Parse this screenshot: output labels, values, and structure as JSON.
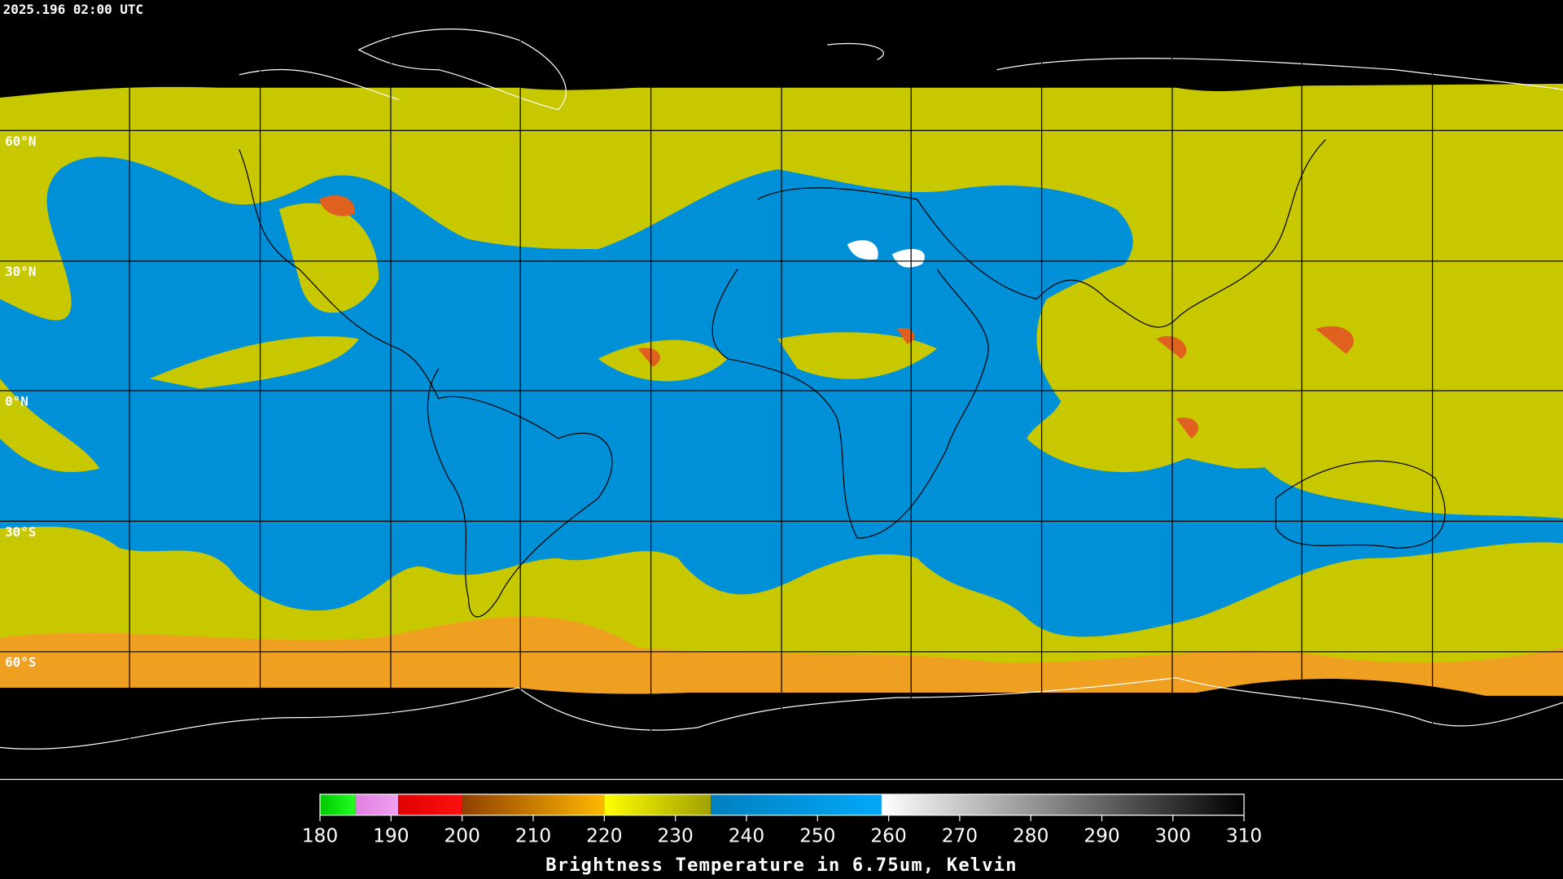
{
  "header": {
    "title": "2025.196 02:00 UTC"
  },
  "map": {
    "lat_labels": [
      "60°N",
      "30°N",
      "0°N",
      "30°S",
      "60°S"
    ]
  },
  "colorbar": {
    "range": [
      180,
      310
    ],
    "ticks": [
      180,
      190,
      200,
      210,
      220,
      230,
      240,
      250,
      260,
      270,
      280,
      290,
      300,
      310
    ],
    "label": "Brightness Temperature in 6.75um, Kelvin",
    "segments": [
      {
        "from": 180,
        "to": 185,
        "color_start": "#00c800",
        "color_end": "#20ff20"
      },
      {
        "from": 185,
        "to": 191,
        "color_start": "#e080e0",
        "color_end": "#f0a0f0"
      },
      {
        "from": 191,
        "to": 200,
        "color_start": "#e00000",
        "color_end": "#ff1010"
      },
      {
        "from": 200,
        "to": 220,
        "color_start": "#904000",
        "color_end": "#ffb800"
      },
      {
        "from": 220,
        "to": 235,
        "color_start": "#ffff00",
        "color_end": "#a0a000"
      },
      {
        "from": 235,
        "to": 259,
        "color_start": "#0080c0",
        "color_end": "#00a8f8"
      },
      {
        "from": 259,
        "to": 310,
        "color_start": "#ffffff",
        "color_end": "#000000"
      }
    ]
  }
}
